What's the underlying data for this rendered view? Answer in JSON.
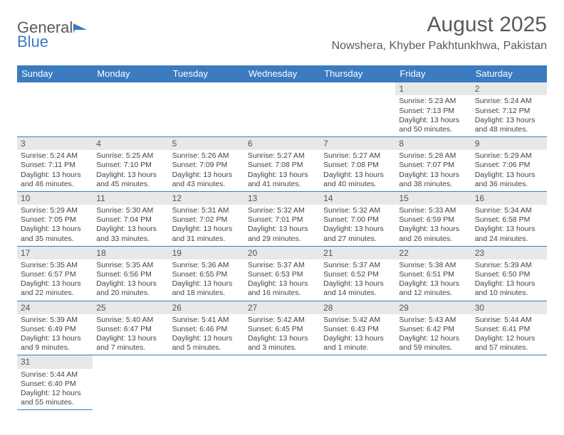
{
  "logo": {
    "text1": "General",
    "text2": "Blue"
  },
  "title": "August 2025",
  "subtitle": "Nowshera, Khyber Pakhtunkhwa, Pakistan",
  "colors": {
    "header_bg": "#3b7bbf",
    "header_text": "#ffffff",
    "daynum_bg": "#e8e8e8",
    "text": "#5a5a5a",
    "cell_border": "#3b7bbf"
  },
  "weekdays": [
    "Sunday",
    "Monday",
    "Tuesday",
    "Wednesday",
    "Thursday",
    "Friday",
    "Saturday"
  ],
  "weeks": [
    [
      null,
      null,
      null,
      null,
      null,
      {
        "day": "1",
        "sunrise": "Sunrise: 5:23 AM",
        "sunset": "Sunset: 7:13 PM",
        "daylight1": "Daylight: 13 hours",
        "daylight2": "and 50 minutes."
      },
      {
        "day": "2",
        "sunrise": "Sunrise: 5:24 AM",
        "sunset": "Sunset: 7:12 PM",
        "daylight1": "Daylight: 13 hours",
        "daylight2": "and 48 minutes."
      }
    ],
    [
      {
        "day": "3",
        "sunrise": "Sunrise: 5:24 AM",
        "sunset": "Sunset: 7:11 PM",
        "daylight1": "Daylight: 13 hours",
        "daylight2": "and 46 minutes."
      },
      {
        "day": "4",
        "sunrise": "Sunrise: 5:25 AM",
        "sunset": "Sunset: 7:10 PM",
        "daylight1": "Daylight: 13 hours",
        "daylight2": "and 45 minutes."
      },
      {
        "day": "5",
        "sunrise": "Sunrise: 5:26 AM",
        "sunset": "Sunset: 7:09 PM",
        "daylight1": "Daylight: 13 hours",
        "daylight2": "and 43 minutes."
      },
      {
        "day": "6",
        "sunrise": "Sunrise: 5:27 AM",
        "sunset": "Sunset: 7:08 PM",
        "daylight1": "Daylight: 13 hours",
        "daylight2": "and 41 minutes."
      },
      {
        "day": "7",
        "sunrise": "Sunrise: 5:27 AM",
        "sunset": "Sunset: 7:08 PM",
        "daylight1": "Daylight: 13 hours",
        "daylight2": "and 40 minutes."
      },
      {
        "day": "8",
        "sunrise": "Sunrise: 5:28 AM",
        "sunset": "Sunset: 7:07 PM",
        "daylight1": "Daylight: 13 hours",
        "daylight2": "and 38 minutes."
      },
      {
        "day": "9",
        "sunrise": "Sunrise: 5:29 AM",
        "sunset": "Sunset: 7:06 PM",
        "daylight1": "Daylight: 13 hours",
        "daylight2": "and 36 minutes."
      }
    ],
    [
      {
        "day": "10",
        "sunrise": "Sunrise: 5:29 AM",
        "sunset": "Sunset: 7:05 PM",
        "daylight1": "Daylight: 13 hours",
        "daylight2": "and 35 minutes."
      },
      {
        "day": "11",
        "sunrise": "Sunrise: 5:30 AM",
        "sunset": "Sunset: 7:04 PM",
        "daylight1": "Daylight: 13 hours",
        "daylight2": "and 33 minutes."
      },
      {
        "day": "12",
        "sunrise": "Sunrise: 5:31 AM",
        "sunset": "Sunset: 7:02 PM",
        "daylight1": "Daylight: 13 hours",
        "daylight2": "and 31 minutes."
      },
      {
        "day": "13",
        "sunrise": "Sunrise: 5:32 AM",
        "sunset": "Sunset: 7:01 PM",
        "daylight1": "Daylight: 13 hours",
        "daylight2": "and 29 minutes."
      },
      {
        "day": "14",
        "sunrise": "Sunrise: 5:32 AM",
        "sunset": "Sunset: 7:00 PM",
        "daylight1": "Daylight: 13 hours",
        "daylight2": "and 27 minutes."
      },
      {
        "day": "15",
        "sunrise": "Sunrise: 5:33 AM",
        "sunset": "Sunset: 6:59 PM",
        "daylight1": "Daylight: 13 hours",
        "daylight2": "and 26 minutes."
      },
      {
        "day": "16",
        "sunrise": "Sunrise: 5:34 AM",
        "sunset": "Sunset: 6:58 PM",
        "daylight1": "Daylight: 13 hours",
        "daylight2": "and 24 minutes."
      }
    ],
    [
      {
        "day": "17",
        "sunrise": "Sunrise: 5:35 AM",
        "sunset": "Sunset: 6:57 PM",
        "daylight1": "Daylight: 13 hours",
        "daylight2": "and 22 minutes."
      },
      {
        "day": "18",
        "sunrise": "Sunrise: 5:35 AM",
        "sunset": "Sunset: 6:56 PM",
        "daylight1": "Daylight: 13 hours",
        "daylight2": "and 20 minutes."
      },
      {
        "day": "19",
        "sunrise": "Sunrise: 5:36 AM",
        "sunset": "Sunset: 6:55 PM",
        "daylight1": "Daylight: 13 hours",
        "daylight2": "and 18 minutes."
      },
      {
        "day": "20",
        "sunrise": "Sunrise: 5:37 AM",
        "sunset": "Sunset: 6:53 PM",
        "daylight1": "Daylight: 13 hours",
        "daylight2": "and 16 minutes."
      },
      {
        "day": "21",
        "sunrise": "Sunrise: 5:37 AM",
        "sunset": "Sunset: 6:52 PM",
        "daylight1": "Daylight: 13 hours",
        "daylight2": "and 14 minutes."
      },
      {
        "day": "22",
        "sunrise": "Sunrise: 5:38 AM",
        "sunset": "Sunset: 6:51 PM",
        "daylight1": "Daylight: 13 hours",
        "daylight2": "and 12 minutes."
      },
      {
        "day": "23",
        "sunrise": "Sunrise: 5:39 AM",
        "sunset": "Sunset: 6:50 PM",
        "daylight1": "Daylight: 13 hours",
        "daylight2": "and 10 minutes."
      }
    ],
    [
      {
        "day": "24",
        "sunrise": "Sunrise: 5:39 AM",
        "sunset": "Sunset: 6:49 PM",
        "daylight1": "Daylight: 13 hours",
        "daylight2": "and 9 minutes."
      },
      {
        "day": "25",
        "sunrise": "Sunrise: 5:40 AM",
        "sunset": "Sunset: 6:47 PM",
        "daylight1": "Daylight: 13 hours",
        "daylight2": "and 7 minutes."
      },
      {
        "day": "26",
        "sunrise": "Sunrise: 5:41 AM",
        "sunset": "Sunset: 6:46 PM",
        "daylight1": "Daylight: 13 hours",
        "daylight2": "and 5 minutes."
      },
      {
        "day": "27",
        "sunrise": "Sunrise: 5:42 AM",
        "sunset": "Sunset: 6:45 PM",
        "daylight1": "Daylight: 13 hours",
        "daylight2": "and 3 minutes."
      },
      {
        "day": "28",
        "sunrise": "Sunrise: 5:42 AM",
        "sunset": "Sunset: 6:43 PM",
        "daylight1": "Daylight: 13 hours",
        "daylight2": "and 1 minute."
      },
      {
        "day": "29",
        "sunrise": "Sunrise: 5:43 AM",
        "sunset": "Sunset: 6:42 PM",
        "daylight1": "Daylight: 12 hours",
        "daylight2": "and 59 minutes."
      },
      {
        "day": "30",
        "sunrise": "Sunrise: 5:44 AM",
        "sunset": "Sunset: 6:41 PM",
        "daylight1": "Daylight: 12 hours",
        "daylight2": "and 57 minutes."
      }
    ],
    [
      {
        "day": "31",
        "sunrise": "Sunrise: 5:44 AM",
        "sunset": "Sunset: 6:40 PM",
        "daylight1": "Daylight: 12 hours",
        "daylight2": "and 55 minutes."
      },
      null,
      null,
      null,
      null,
      null,
      null
    ]
  ]
}
